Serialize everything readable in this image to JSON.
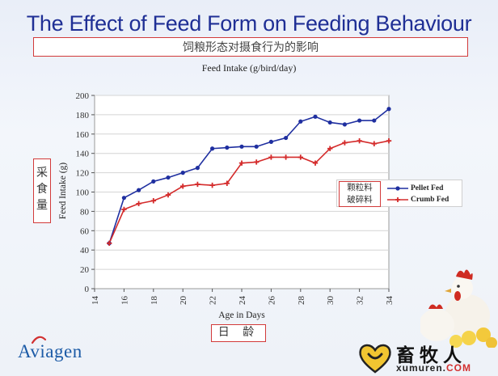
{
  "slide": {
    "title": "The Effect of Feed Form on Feeding Behaviour",
    "subtitle_cn": "饲粮形态对摄食行为的影响"
  },
  "annotations": {
    "ylabel_cn": "采食量",
    "xlabel_cn": "日 龄",
    "legend_cn_1": "颗粒料",
    "legend_cn_2": "破碎料"
  },
  "logo": {
    "text": "Aviagen"
  },
  "brand": {
    "name": "畜牧人",
    "url_main": "xumuren.",
    "url_com": "COM"
  },
  "colors": {
    "pellet": "#1f2fa0",
    "crumb": "#d42b2b",
    "title": "#1f2f95",
    "annotation_border": "#d23a3a"
  },
  "chart_data": {
    "type": "line",
    "title": "Feed Intake (g/bird/day)",
    "xlabel": "Age in Days",
    "ylabel": "Feed Intake (g)",
    "xlim": [
      14,
      34
    ],
    "ylim": [
      0,
      200
    ],
    "xticks": [
      14,
      16,
      18,
      20,
      22,
      24,
      26,
      28,
      30,
      32,
      34
    ],
    "yticks": [
      0,
      20,
      40,
      60,
      80,
      100,
      120,
      140,
      160,
      180,
      200
    ],
    "grid": "horizontal",
    "legend_position": "right",
    "x": [
      15,
      16,
      17,
      18,
      19,
      20,
      21,
      22,
      23,
      24,
      25,
      26,
      27,
      28,
      29,
      30,
      31,
      32,
      33,
      34
    ],
    "series": [
      {
        "name": "Pellet Fed",
        "marker": "circle",
        "values": [
          47,
          94,
          102,
          111,
          115,
          120,
          125,
          145,
          146,
          147,
          147,
          152,
          156,
          173,
          178,
          172,
          170,
          174,
          174,
          186
        ]
      },
      {
        "name": "Crumb Fed",
        "marker": "cross",
        "values": [
          47,
          82,
          88,
          91,
          97,
          106,
          108,
          107,
          109,
          130,
          131,
          136,
          136,
          136,
          130,
          145,
          151,
          153,
          150,
          153
        ]
      }
    ]
  }
}
